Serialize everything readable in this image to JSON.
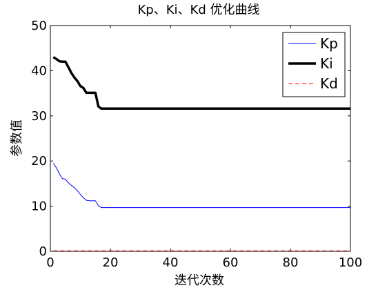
{
  "chart_data": {
    "type": "line",
    "title": "Kp、Ki、Kd 优化曲线",
    "xlabel": "迭代次数",
    "ylabel": "参数值",
    "xlim": [
      0,
      100
    ],
    "ylim": [
      0,
      50
    ],
    "xticks": [
      0,
      20,
      40,
      60,
      80,
      100
    ],
    "yticks": [
      0,
      10,
      20,
      30,
      40,
      50
    ],
    "grid": false,
    "legend_position": "top-right",
    "series": [
      {
        "name": "Kp",
        "color": "#0000ff",
        "line_style": "solid",
        "line_weight": "thin",
        "x": [
          1,
          2,
          3,
          4,
          5,
          6,
          7,
          8,
          9,
          10,
          11,
          12,
          13,
          14,
          15,
          16,
          17,
          18,
          20,
          30,
          40,
          50,
          60,
          70,
          80,
          90,
          100
        ],
        "values": [
          19.5,
          18.5,
          17.2,
          16.1,
          16.0,
          15.2,
          14.6,
          14.1,
          13.4,
          12.6,
          11.9,
          11.3,
          11.2,
          11.2,
          11.2,
          10.1,
          9.7,
          9.7,
          9.7,
          9.7,
          9.7,
          9.7,
          9.7,
          9.7,
          9.7,
          9.7,
          9.7
        ]
      },
      {
        "name": "Ki",
        "color": "#000000",
        "line_style": "solid",
        "line_weight": "thick",
        "x": [
          1,
          2,
          3,
          4,
          5,
          6,
          7,
          8,
          9,
          10,
          11,
          12,
          13,
          14,
          15,
          16,
          17,
          18,
          20,
          30,
          40,
          50,
          60,
          70,
          80,
          90,
          100
        ],
        "values": [
          43.0,
          42.6,
          42.1,
          42.0,
          42.0,
          40.8,
          39.5,
          38.5,
          37.7,
          36.6,
          36.2,
          35.1,
          35.1,
          35.1,
          35.1,
          32.1,
          31.6,
          31.6,
          31.6,
          31.6,
          31.6,
          31.6,
          31.6,
          31.6,
          31.6,
          31.6,
          31.6
        ]
      },
      {
        "name": "Kd",
        "color": "#ff0000",
        "line_style": "dashed",
        "line_weight": "thin",
        "x": [
          1,
          100
        ],
        "values": [
          0.1,
          0.1
        ]
      }
    ]
  }
}
